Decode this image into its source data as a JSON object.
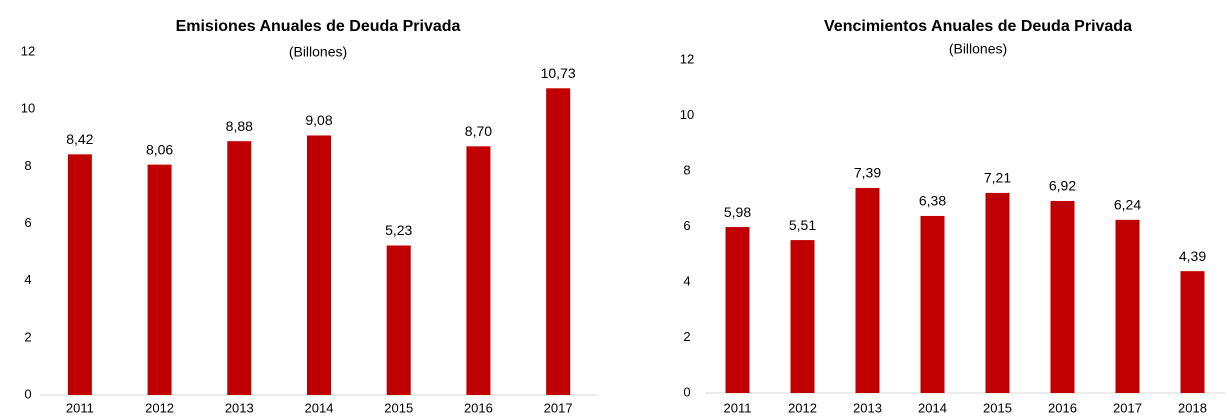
{
  "chart_data": [
    {
      "type": "bar",
      "title": "Emisiones Anuales de Deuda Privada",
      "subtitle": "(Billones)",
      "categories": [
        "2011",
        "2012",
        "2013",
        "2014",
        "2015",
        "2016",
        "2017"
      ],
      "values": [
        8.42,
        8.06,
        8.88,
        9.08,
        5.23,
        8.7,
        10.73
      ],
      "value_labels": [
        "8,42",
        "8,06",
        "8,88",
        "9,08",
        "5,23",
        "8,70",
        "10,73"
      ],
      "color": "#c00000",
      "ylim": [
        0,
        12
      ],
      "yticks": [
        0,
        2,
        4,
        6,
        8,
        10,
        12
      ],
      "grid": false
    },
    {
      "type": "bar",
      "title": "Vencimientos Anuales de Deuda Privada",
      "subtitle": "(Billones)",
      "categories": [
        "2011",
        "2012",
        "2013",
        "2014",
        "2015",
        "2016",
        "2017",
        "2018"
      ],
      "values": [
        5.98,
        5.51,
        7.39,
        6.38,
        7.21,
        6.92,
        6.24,
        4.39
      ],
      "value_labels": [
        "5,98",
        "5,51",
        "7,39",
        "6,38",
        "7,21",
        "6,92",
        "6,24",
        "4,39"
      ],
      "color": "#c00000",
      "ylim": [
        0,
        12
      ],
      "yticks": [
        0,
        2,
        4,
        6,
        8,
        10,
        12
      ],
      "grid": false
    }
  ]
}
